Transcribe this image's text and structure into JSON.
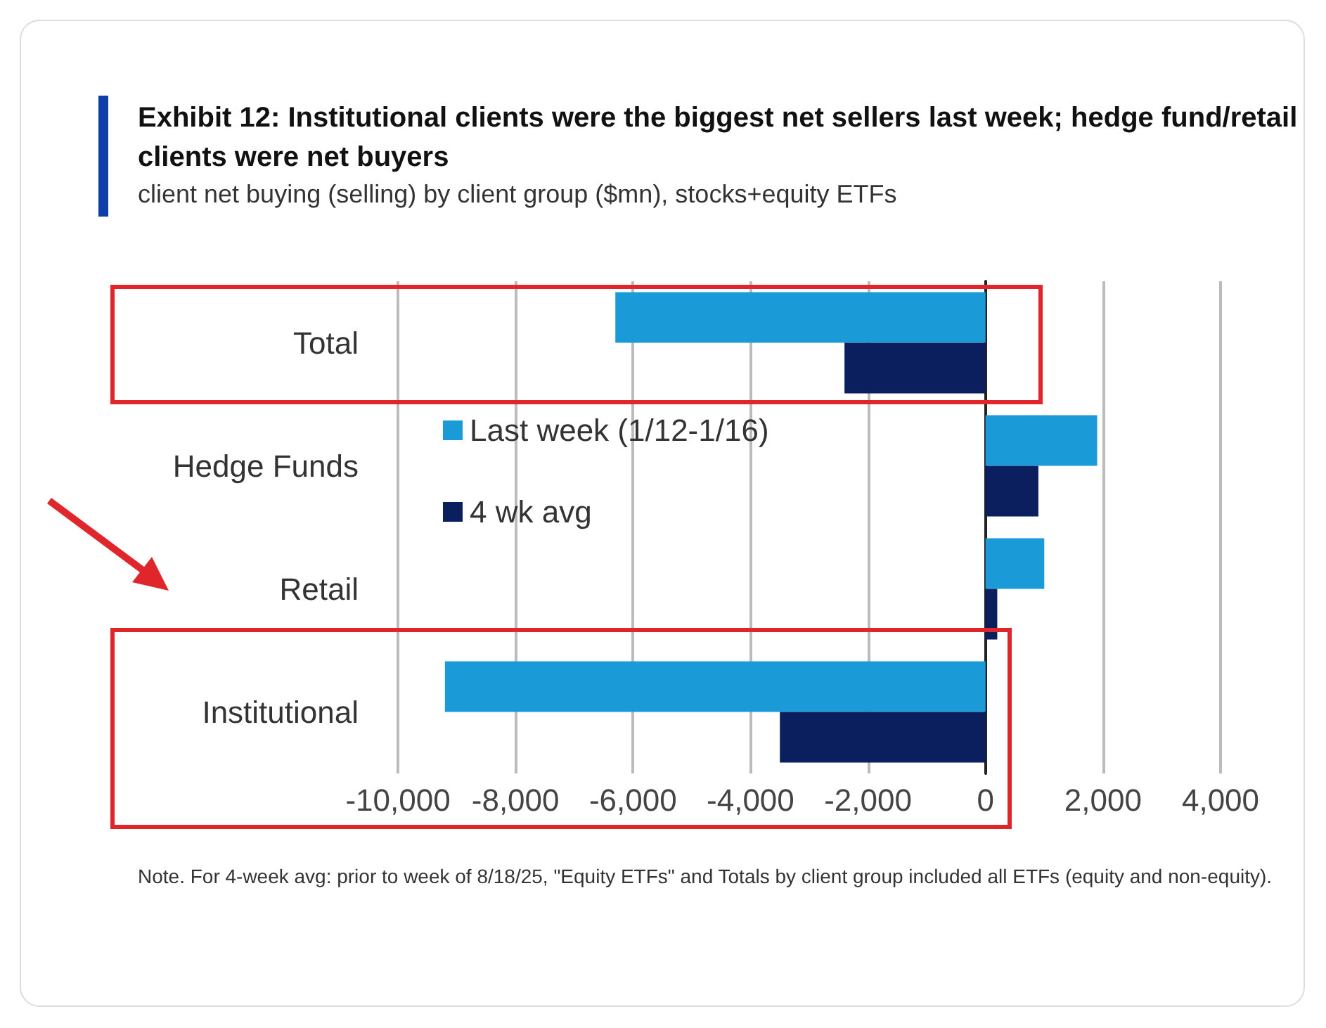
{
  "chart_data": {
    "type": "bar",
    "orientation": "horizontal",
    "title": "Exhibit 12: Institutional clients were the biggest net sellers last week; hedge fund/retail clients were net buyers",
    "subtitle": "client net buying (selling) by client group ($mn), stocks+equity ETFs",
    "categories": [
      "Total",
      "Hedge Funds",
      "Retail",
      "Institutional"
    ],
    "series": [
      {
        "name": "Last week (1/12-1/16)",
        "color": "#1a9bd7",
        "values": [
          -6300,
          1900,
          1000,
          -9200
        ]
      },
      {
        "name": "4 wk avg",
        "color": "#0b1f5e",
        "values": [
          -2400,
          900,
          200,
          -3500
        ]
      }
    ],
    "xlim": [
      -10000,
      4000
    ],
    "xticks": [
      {
        "value": -10000,
        "label": "-10,000"
      },
      {
        "value": -8000,
        "label": "-8,000"
      },
      {
        "value": -6000,
        "label": "-6,000"
      },
      {
        "value": -4000,
        "label": "-4,000"
      },
      {
        "value": -2000,
        "label": "-2,000"
      },
      {
        "value": 0,
        "label": "0"
      },
      {
        "value": 2000,
        "label": "2,000"
      },
      {
        "value": 4000,
        "label": "4,000"
      }
    ],
    "grid": "x",
    "legend": "left",
    "annotations": [
      "Note. For 4-week avg: prior to week of 8/18/25, \"Equity ETFs\" and Totals by client group included all ETFs (equity and non-equity)."
    ]
  }
}
